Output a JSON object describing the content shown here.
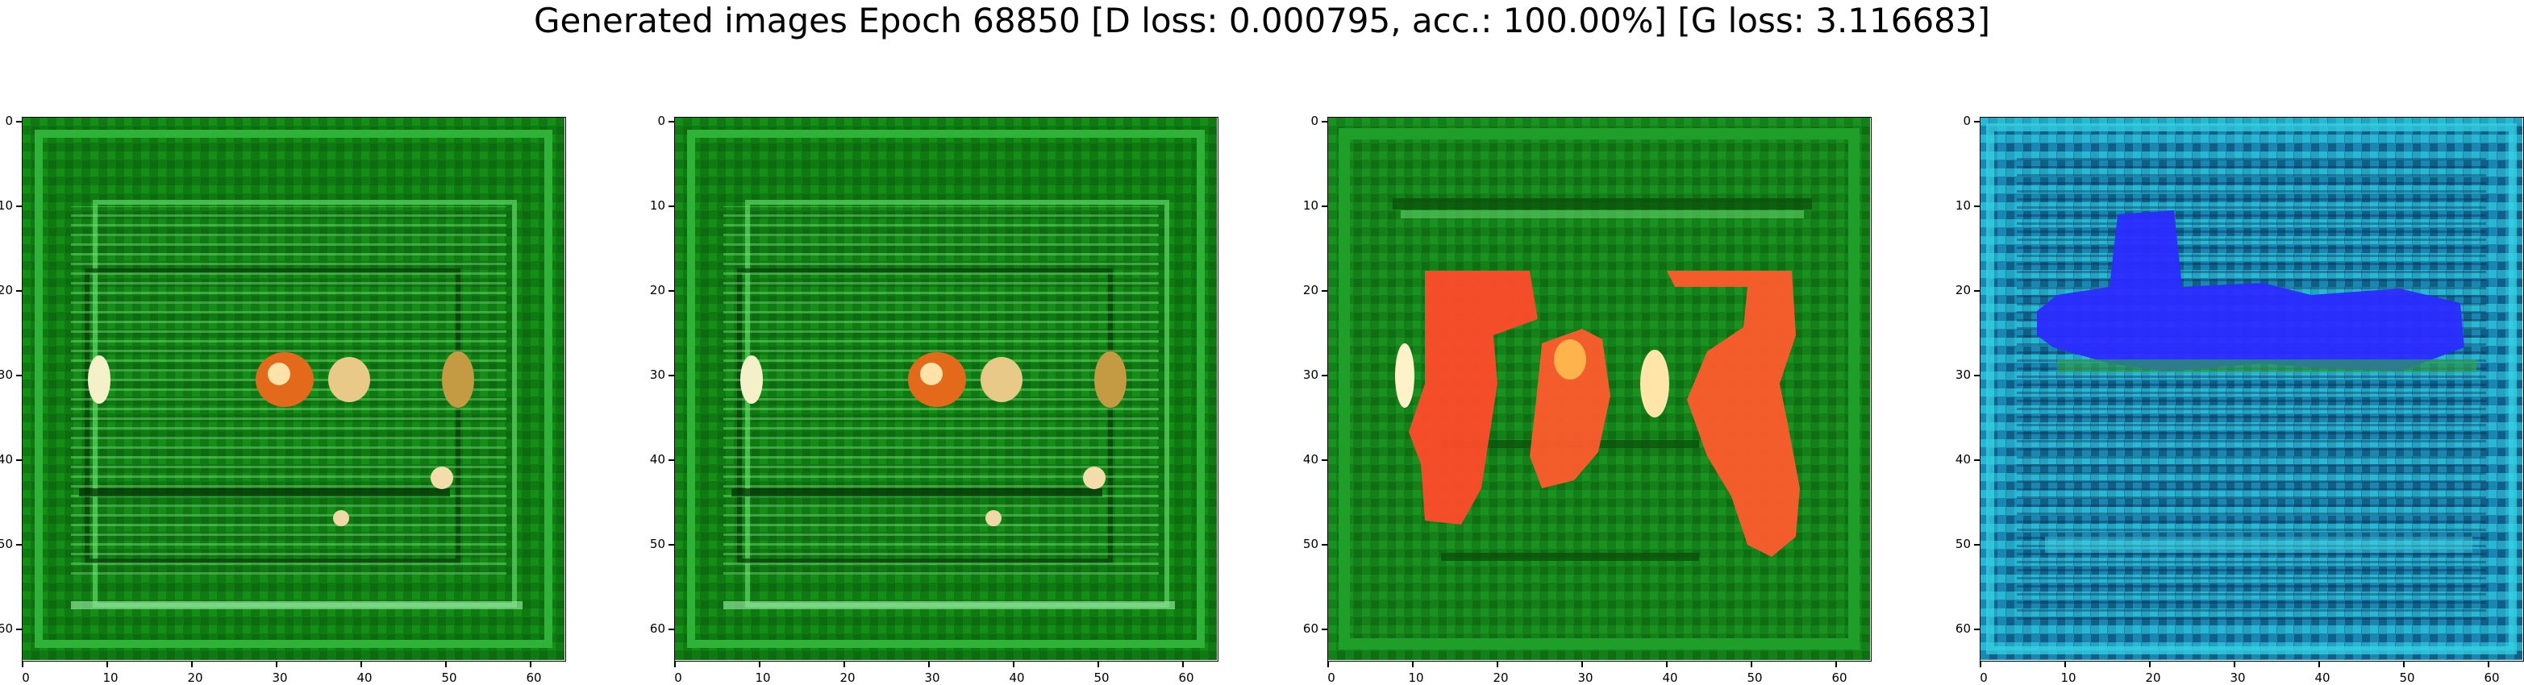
{
  "figure": {
    "title": "Generated images Epoch 68850 [D loss: 0.000795, acc.: 100.00%] [G loss: 3.116683]"
  },
  "panels": [
    {
      "id": "image-1",
      "palette": "green",
      "x_ticks": [
        "0",
        "10",
        "20",
        "30",
        "40",
        "50",
        "60"
      ],
      "y_ticks": [
        "0",
        "10",
        "20",
        "30",
        "40",
        "50",
        "60"
      ]
    },
    {
      "id": "image-2",
      "palette": "green",
      "x_ticks": [
        "0",
        "10",
        "20",
        "30",
        "40",
        "50",
        "60"
      ],
      "y_ticks": [
        "0",
        "10",
        "20",
        "30",
        "40",
        "50",
        "60"
      ]
    },
    {
      "id": "image-3",
      "palette": "green-red",
      "x_ticks": [
        "0",
        "10",
        "20",
        "30",
        "40",
        "50",
        "60"
      ],
      "y_ticks": [
        "0",
        "10",
        "20",
        "30",
        "40",
        "50",
        "60"
      ]
    },
    {
      "id": "image-4",
      "palette": "cyan-blue",
      "x_ticks": [
        "0",
        "10",
        "20",
        "30",
        "40",
        "50",
        "60"
      ],
      "y_ticks": [
        "0",
        "10",
        "20",
        "30",
        "40",
        "50",
        "60"
      ]
    }
  ],
  "axes": {
    "x_range": [
      0,
      63
    ],
    "y_range": [
      0,
      63
    ],
    "y_inverted": true
  }
}
